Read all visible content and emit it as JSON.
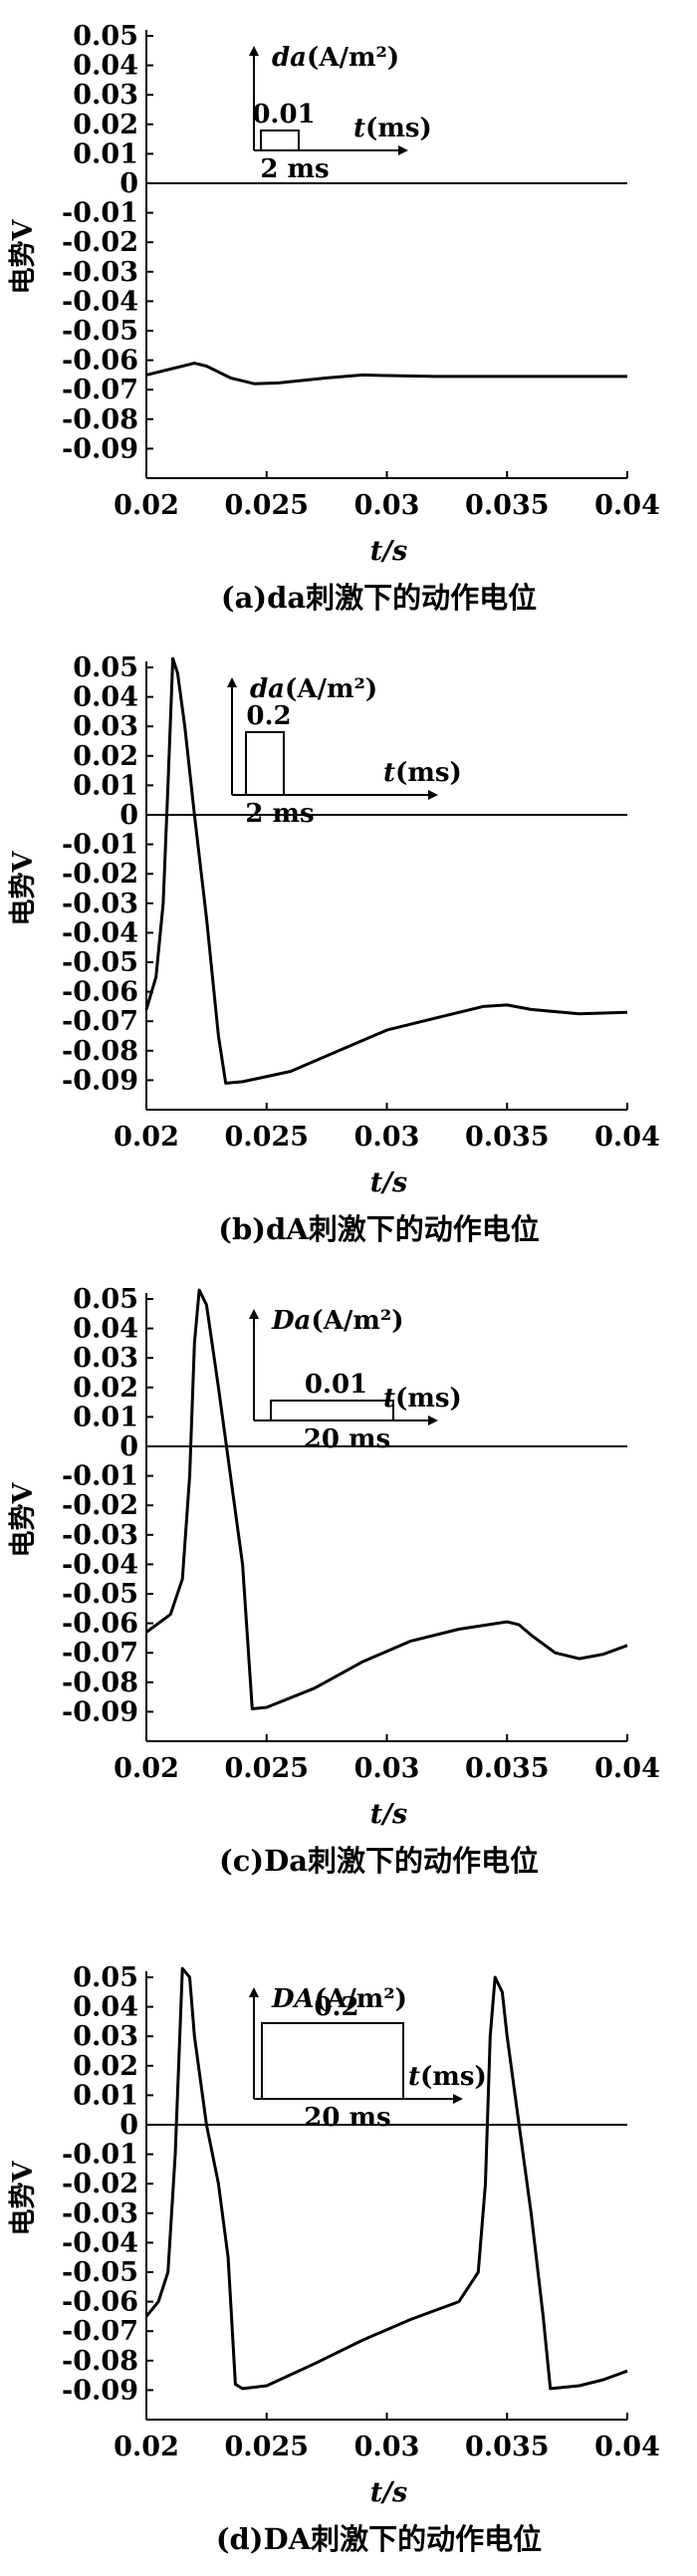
{
  "chart_data": [
    {
      "id": "a",
      "type": "line",
      "caption": "(a)da刺激下的动作电位",
      "xlabel": "t/s",
      "ylabel": "电势V",
      "xlim": [
        0.02,
        0.04
      ],
      "ylim": [
        -0.1,
        0.05
      ],
      "xticks": [
        "0.02",
        "0.025",
        "0.03",
        "0.035",
        "0.04"
      ],
      "yticks": [
        "0.05",
        "0.04",
        "0.03",
        "0.02",
        "0.01",
        "0",
        "-0.01",
        "-0.02",
        "-0.03",
        "-0.04",
        "-0.05",
        "-0.06",
        "-0.07",
        "-0.08",
        "-0.09"
      ],
      "inset": {
        "label_var": "da",
        "label_unit": "(A/m²)",
        "amplitude": "0.01",
        "axis_label_var": "t",
        "axis_label_unit": "(ms)",
        "duration": "2 ms"
      },
      "series": [
        {
          "x": [
            0.02,
            0.021,
            0.022,
            0.0225,
            0.0235,
            0.0245,
            0.0255,
            0.0275,
            0.029,
            0.03,
            0.032,
            0.035,
            0.04
          ],
          "y": [
            -0.065,
            -0.063,
            -0.061,
            -0.062,
            -0.066,
            -0.068,
            -0.0677,
            -0.066,
            -0.065,
            -0.0652,
            -0.0655,
            -0.0655,
            -0.0655
          ]
        }
      ]
    },
    {
      "id": "b",
      "type": "line",
      "caption": "(b)dA刺激下的动作电位",
      "xlabel": "t/s",
      "ylabel": "电势V",
      "xlim": [
        0.02,
        0.04
      ],
      "ylim": [
        -0.1,
        0.05
      ],
      "xticks": [
        "0.02",
        "0.025",
        "0.03",
        "0.035",
        "0.04"
      ],
      "yticks": [
        "0.05",
        "0.04",
        "0.03",
        "0.02",
        "0.01",
        "0",
        "-0.01",
        "-0.02",
        "-0.03",
        "-0.04",
        "-0.05",
        "-0.06",
        "-0.07",
        "-0.08",
        "-0.09"
      ],
      "inset": {
        "label_var": "da",
        "label_unit": "(A/m²)",
        "amplitude": "0.2",
        "axis_label_var": "t",
        "axis_label_unit": "(ms)",
        "duration": "2 ms"
      },
      "series": [
        {
          "x": [
            0.02,
            0.0204,
            0.0207,
            0.0209,
            0.0211,
            0.0213,
            0.0216,
            0.022,
            0.0225,
            0.023,
            0.0233,
            0.024,
            0.026,
            0.028,
            0.03,
            0.032,
            0.034,
            0.035,
            0.036,
            0.038,
            0.04
          ],
          "y": [
            -0.066,
            -0.055,
            -0.03,
            0.01,
            0.053,
            0.048,
            0.03,
            0.0,
            -0.035,
            -0.075,
            -0.091,
            -0.0905,
            -0.087,
            -0.08,
            -0.073,
            -0.069,
            -0.065,
            -0.0645,
            -0.066,
            -0.0675,
            -0.067
          ]
        }
      ]
    },
    {
      "id": "c",
      "type": "line",
      "caption": "(c)Da刺激下的动作电位",
      "xlabel": "t/s",
      "ylabel": "电势V",
      "xlim": [
        0.02,
        0.04
      ],
      "ylim": [
        -0.1,
        0.05
      ],
      "xticks": [
        "0.02",
        "0.025",
        "0.03",
        "0.035",
        "0.04"
      ],
      "yticks": [
        "0.05",
        "0.04",
        "0.03",
        "0.02",
        "0.01",
        "0",
        "-0.01",
        "-0.02",
        "-0.03",
        "-0.04",
        "-0.05",
        "-0.06",
        "-0.07",
        "-0.08",
        "-0.09"
      ],
      "inset": {
        "label_var": "Da",
        "label_unit": "(A/m²)",
        "amplitude": "0.01",
        "axis_label_var": "t",
        "axis_label_unit": "(ms)",
        "duration": "20 ms"
      },
      "series": [
        {
          "x": [
            0.02,
            0.021,
            0.0215,
            0.0218,
            0.022,
            0.0222,
            0.0225,
            0.023,
            0.0235,
            0.024,
            0.0244,
            0.025,
            0.027,
            0.029,
            0.031,
            0.033,
            0.035,
            0.0355,
            0.036,
            0.037,
            0.038,
            0.039,
            0.04
          ],
          "y": [
            -0.063,
            -0.057,
            -0.045,
            -0.01,
            0.035,
            0.053,
            0.048,
            0.02,
            -0.01,
            -0.04,
            -0.089,
            -0.0885,
            -0.082,
            -0.073,
            -0.066,
            -0.062,
            -0.0595,
            -0.0605,
            -0.064,
            -0.07,
            -0.072,
            -0.0705,
            -0.0675
          ]
        }
      ]
    },
    {
      "id": "d",
      "type": "line",
      "caption": "(d)DA刺激下的动作电位",
      "xlabel": "t/s",
      "ylabel": "电势V",
      "xlim": [
        0.02,
        0.04
      ],
      "ylim": [
        -0.1,
        0.05
      ],
      "xticks": [
        "0.02",
        "0.025",
        "0.03",
        "0.035",
        "0.04"
      ],
      "yticks": [
        "0.05",
        "0.04",
        "0.03",
        "0.02",
        "0.01",
        "0",
        "-0.01",
        "-0.02",
        "-0.03",
        "-0.04",
        "-0.05",
        "-0.06",
        "-0.07",
        "-0.08",
        "-0.09"
      ],
      "inset": {
        "label_var": "DA",
        "label_unit": "(A/m²)",
        "amplitude": "0.2",
        "axis_label_var": "t",
        "axis_label_unit": "(ms)",
        "duration": "20 ms"
      },
      "series": [
        {
          "x": [
            0.02,
            0.0205,
            0.0209,
            0.0212,
            0.0215,
            0.0218,
            0.022,
            0.0225,
            0.023,
            0.0234,
            0.0237,
            0.024,
            0.025,
            0.027,
            0.029,
            0.031,
            0.033,
            0.0338,
            0.0341,
            0.0343,
            0.0345,
            0.0348,
            0.035,
            0.0355,
            0.036,
            0.0365,
            0.0368,
            0.038,
            0.039,
            0.04
          ],
          "y": [
            -0.065,
            -0.06,
            -0.05,
            -0.01,
            0.053,
            0.05,
            0.03,
            0.0,
            -0.02,
            -0.045,
            -0.088,
            -0.0895,
            -0.0885,
            -0.081,
            -0.073,
            -0.066,
            -0.06,
            -0.05,
            -0.02,
            0.03,
            0.05,
            0.045,
            0.03,
            0.0,
            -0.03,
            -0.065,
            -0.0895,
            -0.0885,
            -0.0865,
            -0.0835
          ]
        }
      ]
    }
  ]
}
